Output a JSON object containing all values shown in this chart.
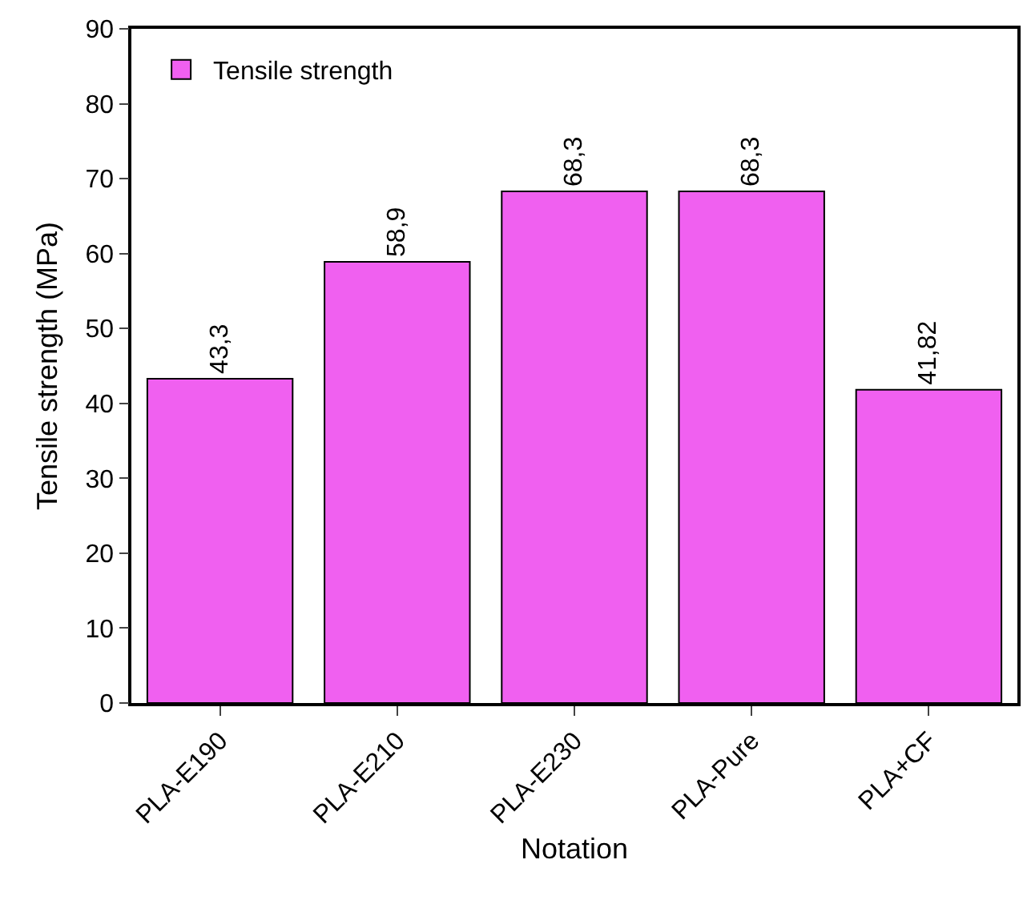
{
  "chart_data": {
    "type": "bar",
    "xlabel": "Notation",
    "ylabel": "Tensile strength (MPa)",
    "categories": [
      "PLA-E190",
      "PLA-E210",
      "PLA-E230",
      "PLA-Pure",
      "PLA+CF"
    ],
    "series": [
      {
        "name": "Tensile strength",
        "color": "#f060f0",
        "values": [
          43.3,
          58.9,
          68.3,
          68.3,
          41.82
        ],
        "value_labels": [
          "43,3",
          "58,9",
          "68,3",
          "68,3",
          "41,82"
        ]
      }
    ],
    "ylim": [
      0,
      90
    ],
    "yticks": [
      0,
      10,
      20,
      30,
      40,
      50,
      60,
      70,
      80,
      90
    ],
    "grid": false,
    "legend": "top left"
  }
}
